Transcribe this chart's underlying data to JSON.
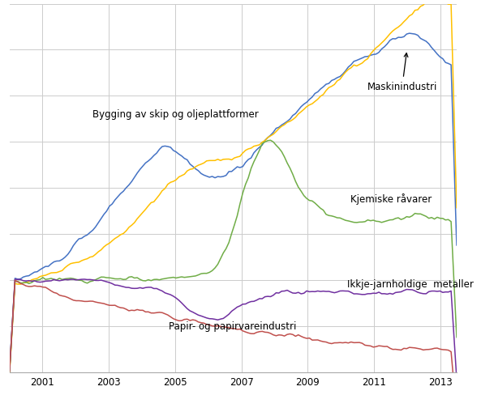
{
  "colors": {
    "bygging": "#4472C4",
    "maskin": "#FFC000",
    "kjemiske": "#70AD47",
    "ikkje": "#7030A0",
    "papir": "#C0504D"
  },
  "labels": {
    "bygging": "Bygging av skip og oljeplattformer",
    "maskin": "Maskinindustri",
    "kjemiske": "Kjemiske råvarer",
    "ikkje": "Ikkje-jarnholdige  metaller",
    "papir": "Papir- og papirvareindustri"
  },
  "xlim": [
    2000.0,
    2013.5
  ],
  "ylim": [
    60,
    220
  ],
  "grid_color": "#CCCCCC",
  "background_color": "#FFFFFF",
  "x_start": 2000.0,
  "x_end": 2013.5,
  "n_points": 162
}
